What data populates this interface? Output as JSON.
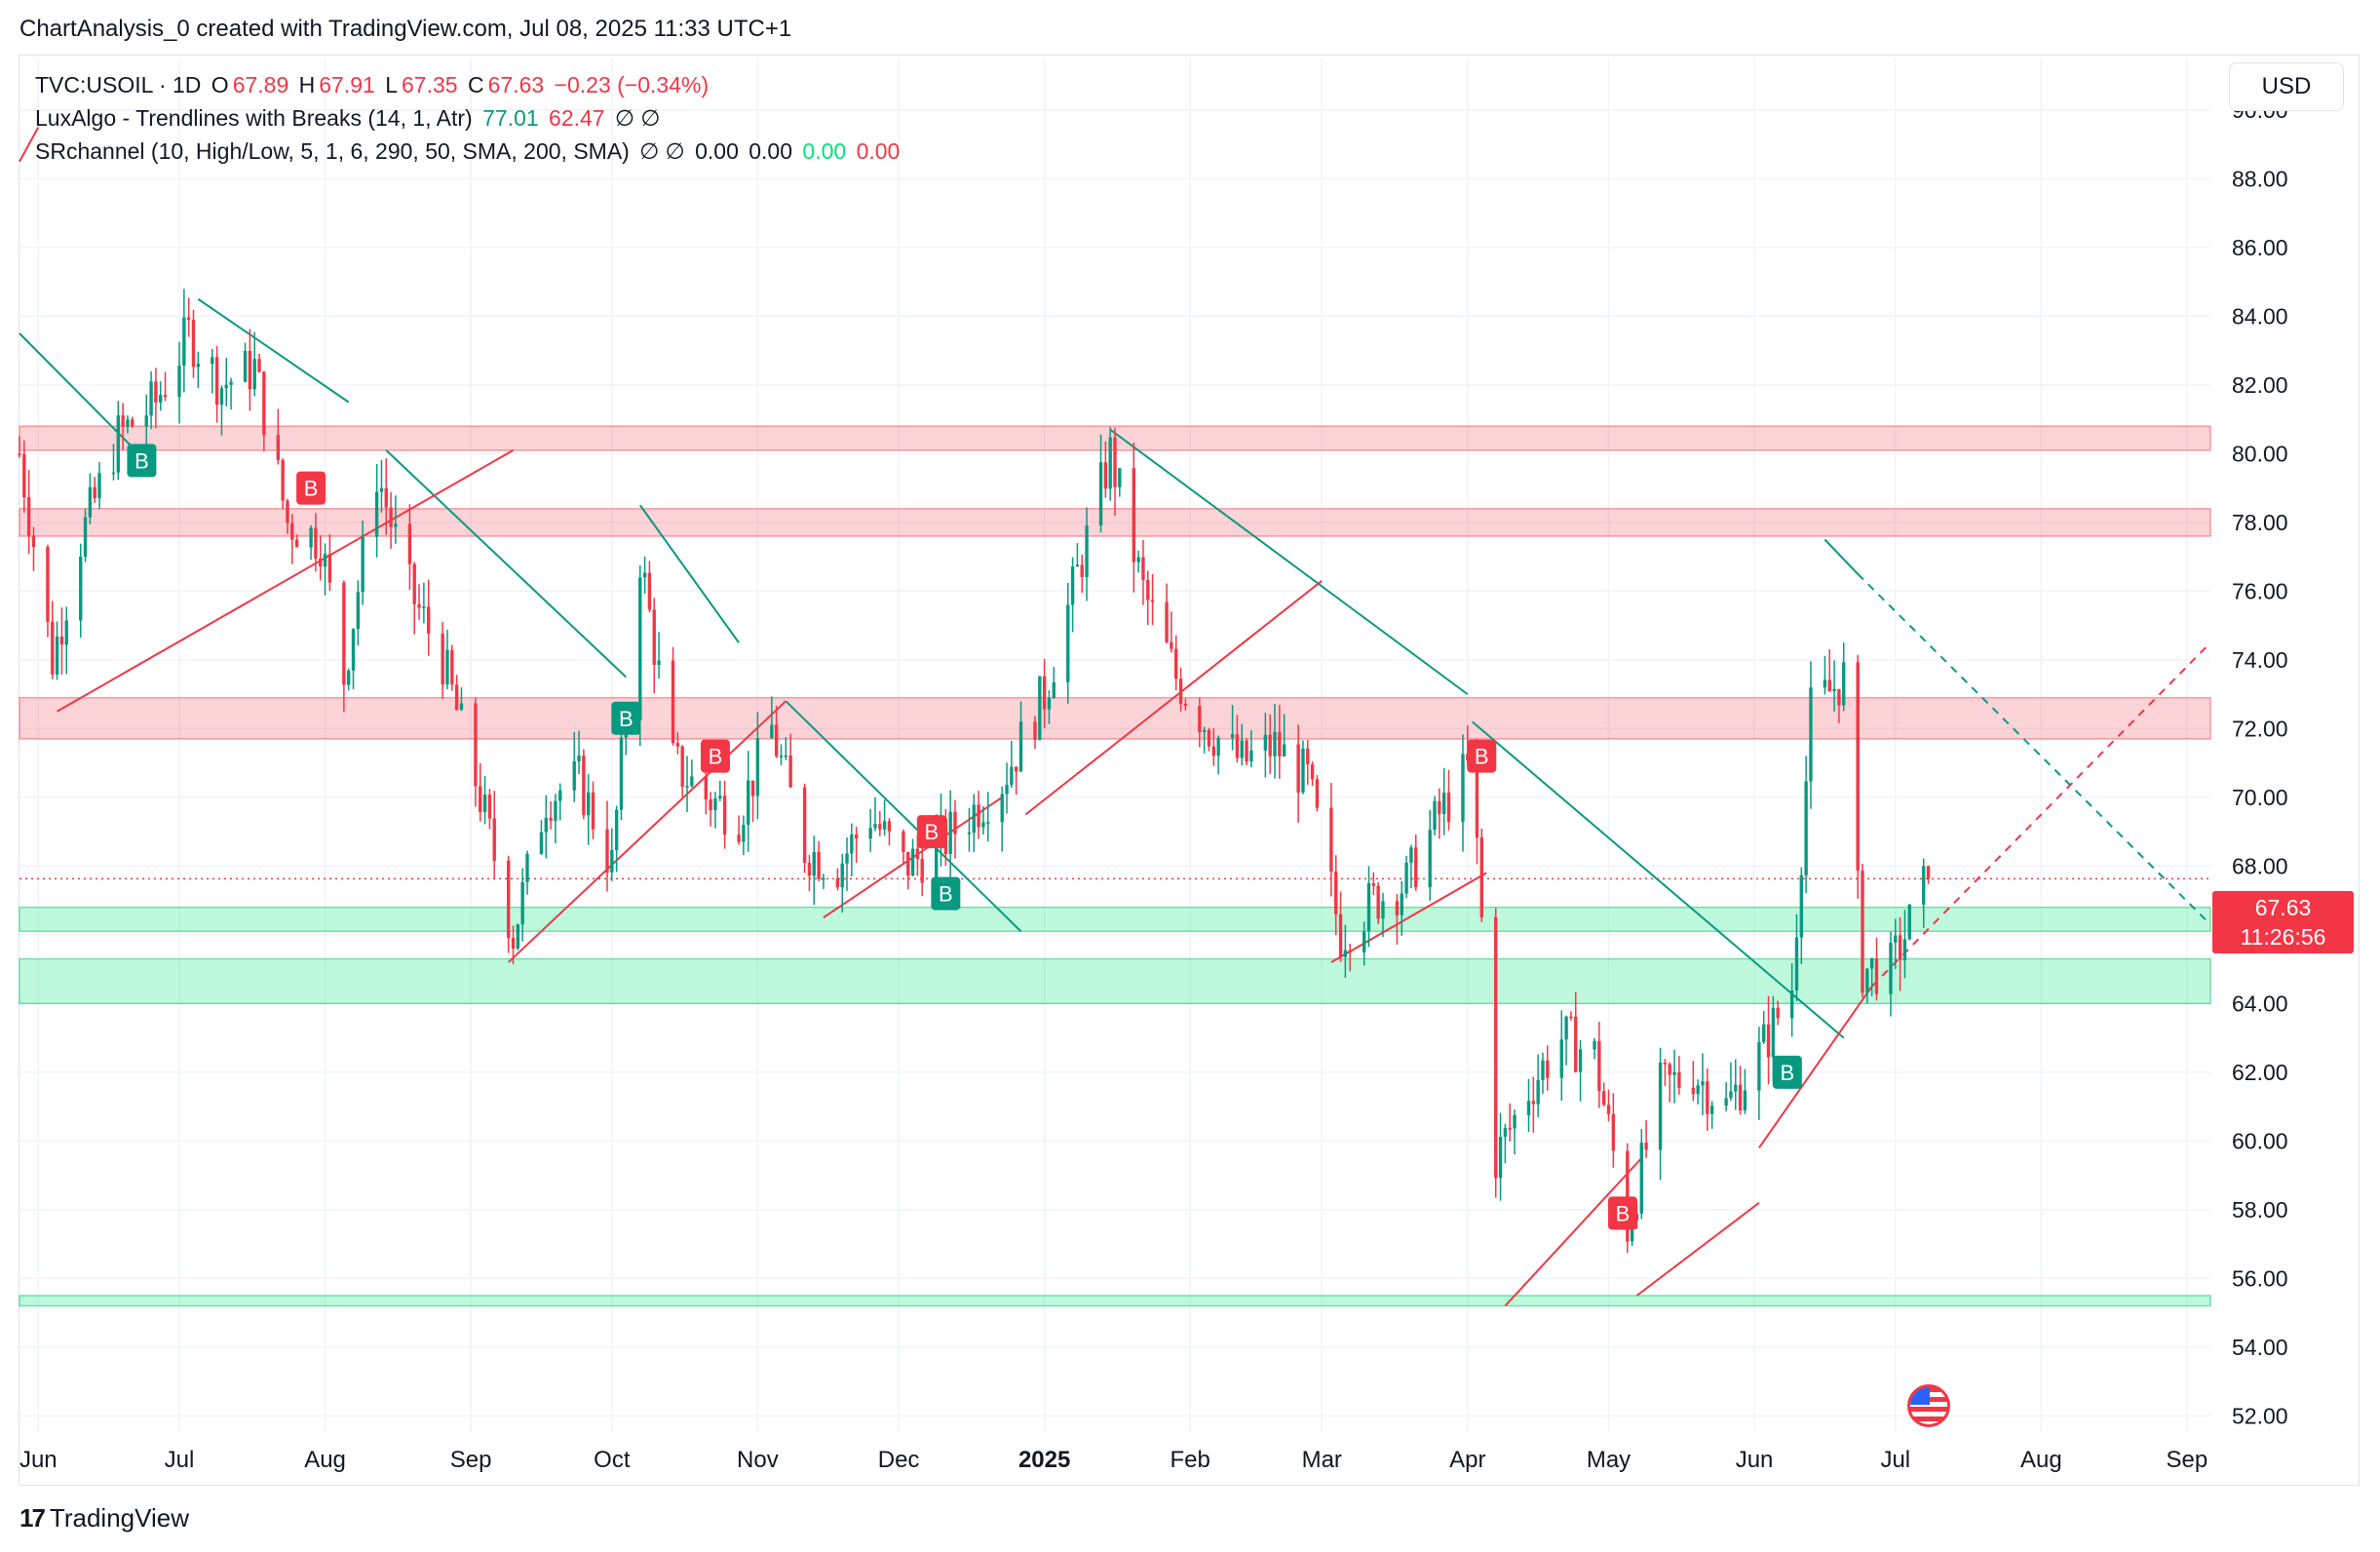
{
  "header": {
    "created_line": "ChartAnalysis_0 created with TradingView.com, Jul 08, 2025 11:33 UTC+1"
  },
  "legend": {
    "symbol": "TVC:USOIL · 1D",
    "open_label": "O",
    "open": "67.89",
    "high_label": "H",
    "high": "67.91",
    "low_label": "L",
    "low": "67.35",
    "close_label": "C",
    "close": "67.63",
    "change": "−0.23 (−0.34%)",
    "indicator1_name": "LuxAlgo - Trendlines with Breaks (14, 1, Atr)",
    "indicator1_v1": "77.01",
    "indicator1_v2": "62.47",
    "indicator1_icons": "∅ ∅",
    "indicator2_name": "SRchannel (10, High/Low, 5, 1, 6, 290, 50, SMA, 200, SMA)",
    "indicator2_icons": "∅ ∅",
    "indicator2_v1": "0.00",
    "indicator2_v2": "0.00",
    "indicator2_v3": "0.00",
    "indicator2_v4": "0.00"
  },
  "currency_button": "USD",
  "price_tag": {
    "price": "67.63",
    "countdown": "11:26:56"
  },
  "footer": {
    "brand": "TradingView",
    "logo_mark": "17"
  },
  "colors": {
    "up": "#089981",
    "down": "#f23645",
    "resistance_zone": "rgba(242,54,69,0.22)",
    "support_zone": "rgba(0,230,118,0.25)"
  },
  "chart_data": {
    "type": "candlestick",
    "y_axis": {
      "min": 51.5,
      "max": 91.5,
      "ticks": [
        52,
        54,
        56,
        58,
        60,
        62,
        64,
        66,
        68,
        70,
        72,
        74,
        76,
        78,
        80,
        82,
        84,
        86,
        88,
        90
      ],
      "tick_labels": [
        "52.00",
        "54.00",
        "56.00",
        "58.00",
        "60.00",
        "62.00",
        "64.00",
        "66.00",
        "68.00",
        "70.00",
        "72.00",
        "74.00",
        "76.00",
        "78.00",
        "80.00",
        "82.00",
        "84.00",
        "86.00",
        "88.00",
        "90.00"
      ]
    },
    "x_axis": {
      "start": "2024-05-28",
      "end": "2025-09-06",
      "ticks": [
        {
          "date": "2024-06-01",
          "label": "Jun"
        },
        {
          "date": "2024-07-01",
          "label": "Jul"
        },
        {
          "date": "2024-08-01",
          "label": "Aug"
        },
        {
          "date": "2024-09-01",
          "label": "Sep"
        },
        {
          "date": "2024-10-01",
          "label": "Oct"
        },
        {
          "date": "2024-11-01",
          "label": "Nov"
        },
        {
          "date": "2024-12-01",
          "label": "Dec"
        },
        {
          "date": "2025-01-01",
          "label": "2025",
          "bold": true
        },
        {
          "date": "2025-02-01",
          "label": "Feb"
        },
        {
          "date": "2025-03-01",
          "label": "Mar"
        },
        {
          "date": "2025-04-01",
          "label": "Apr"
        },
        {
          "date": "2025-05-01",
          "label": "May"
        },
        {
          "date": "2025-06-01",
          "label": "Jun"
        },
        {
          "date": "2025-07-01",
          "label": "Jul"
        },
        {
          "date": "2025-08-01",
          "label": "Aug"
        },
        {
          "date": "2025-09-01",
          "label": "Sep"
        }
      ]
    },
    "close_path": [
      [
        "2024-05-28",
        80.0
      ],
      [
        "2024-06-04",
        74.0
      ],
      [
        "2024-06-10",
        77.5
      ],
      [
        "2024-06-18",
        80.5
      ],
      [
        "2024-06-26",
        81.5
      ],
      [
        "2024-07-03",
        83.5
      ],
      [
        "2024-07-10",
        82.0
      ],
      [
        "2024-07-17",
        82.5
      ],
      [
        "2024-07-24",
        78.0
      ],
      [
        "2024-07-31",
        77.5
      ],
      [
        "2024-08-05",
        73.5
      ],
      [
        "2024-08-12",
        79.5
      ],
      [
        "2024-08-19",
        76.0
      ],
      [
        "2024-08-26",
        74.0
      ],
      [
        "2024-09-03",
        70.0
      ],
      [
        "2024-09-10",
        66.0
      ],
      [
        "2024-09-17",
        70.0
      ],
      [
        "2024-09-24",
        70.5
      ],
      [
        "2024-10-01",
        68.0
      ],
      [
        "2024-10-07",
        77.0
      ],
      [
        "2024-10-14",
        71.0
      ],
      [
        "2024-10-21",
        70.0
      ],
      [
        "2024-10-28",
        69.5
      ],
      [
        "2024-11-04",
        72.0
      ],
      [
        "2024-11-11",
        68.5
      ],
      [
        "2024-11-18",
        68.0
      ],
      [
        "2024-11-25",
        69.5
      ],
      [
        "2024-12-02",
        68.0
      ],
      [
        "2024-12-09",
        68.5
      ],
      [
        "2024-12-16",
        69.5
      ],
      [
        "2024-12-23",
        70.5
      ],
      [
        "2025-01-01",
        73.0
      ],
      [
        "2025-01-08",
        76.5
      ],
      [
        "2025-01-15",
        80.0
      ],
      [
        "2025-01-22",
        76.0
      ],
      [
        "2025-01-29",
        73.5
      ],
      [
        "2025-02-05",
        72.0
      ],
      [
        "2025-02-12",
        71.0
      ],
      [
        "2025-02-19",
        71.5
      ],
      [
        "2025-02-26",
        70.5
      ],
      [
        "2025-03-05",
        66.0
      ],
      [
        "2025-03-12",
        67.0
      ],
      [
        "2025-03-19",
        67.5
      ],
      [
        "2025-03-26",
        69.5
      ],
      [
        "2025-04-02",
        71.0
      ],
      [
        "2025-04-07",
        59.5
      ],
      [
        "2025-04-14",
        61.5
      ],
      [
        "2025-04-21",
        63.0
      ],
      [
        "2025-04-28",
        62.5
      ],
      [
        "2025-05-05",
        57.5
      ],
      [
        "2025-05-12",
        61.5
      ],
      [
        "2025-05-19",
        62.0
      ],
      [
        "2025-05-26",
        61.0
      ],
      [
        "2025-06-02",
        62.5
      ],
      [
        "2025-06-09",
        64.5
      ],
      [
        "2025-06-13",
        72.5
      ],
      [
        "2025-06-20",
        73.5
      ],
      [
        "2025-06-24",
        65.0
      ],
      [
        "2025-06-30",
        65.0
      ],
      [
        "2025-07-08",
        67.63
      ]
    ],
    "resistance_zones": [
      [
        80.1,
        80.8
      ],
      [
        77.6,
        78.4
      ],
      [
        71.7,
        72.9
      ]
    ],
    "support_zones": [
      [
        66.1,
        66.8
      ],
      [
        64.0,
        65.3
      ],
      [
        55.2,
        55.5
      ]
    ],
    "current_price": 67.63,
    "down_trendlines": [
      [
        [
          "2024-05-28",
          83.5
        ],
        [
          "2024-06-26",
          79.5
        ]
      ],
      [
        [
          "2024-07-05",
          84.5
        ],
        [
          "2024-08-06",
          81.5
        ]
      ],
      [
        [
          "2024-08-14",
          80.1
        ],
        [
          "2024-10-04",
          73.5
        ]
      ],
      [
        [
          "2024-10-07",
          78.5
        ],
        [
          "2024-10-28",
          74.5
        ]
      ],
      [
        [
          "2024-11-07",
          72.8
        ],
        [
          "2024-12-27",
          66.1
        ]
      ],
      [
        [
          "2025-01-15",
          80.7
        ],
        [
          "2025-04-01",
          73.0
        ]
      ],
      [
        [
          "2025-04-02",
          72.2
        ],
        [
          "2025-06-20",
          63.0
        ]
      ],
      [
        [
          "2025-06-16",
          77.5
        ],
        [
          "2025-06-23",
          76.5
        ]
      ]
    ],
    "down_trendlines_extended": [
      [
        [
          "2025-06-23",
          76.5
        ],
        [
          "2025-09-06",
          66.3
        ]
      ]
    ],
    "up_trendlines": [
      [
        [
          "2024-05-28",
          88.5
        ],
        [
          "2024-06-01",
          89.5
        ]
      ],
      [
        [
          "2024-06-05",
          72.5
        ],
        [
          "2024-09-10",
          80.1
        ]
      ],
      [
        [
          "2024-09-09",
          65.2
        ],
        [
          "2024-11-07",
          72.8
        ]
      ],
      [
        [
          "2024-11-15",
          66.5
        ],
        [
          "2024-12-23",
          70.0
        ]
      ],
      [
        [
          "2024-12-28",
          69.5
        ],
        [
          "2025-03-01",
          76.3
        ]
      ],
      [
        [
          "2025-03-03",
          65.2
        ],
        [
          "2025-04-05",
          67.8
        ]
      ],
      [
        [
          "2025-04-09",
          55.2
        ],
        [
          "2025-05-08",
          59.5
        ]
      ],
      [
        [
          "2025-05-07",
          55.5
        ],
        [
          "2025-06-02",
          58.2
        ]
      ],
      [
        [
          "2025-06-02",
          59.8
        ],
        [
          "2025-06-26",
          64.5
        ]
      ]
    ],
    "up_trendlines_extended": [
      [
        [
          "2025-06-26",
          64.5
        ],
        [
          "2025-09-06",
          74.5
        ]
      ]
    ],
    "break_labels": [
      {
        "date": "2024-06-23",
        "price": 79.8,
        "label": "B",
        "kind": "bull"
      },
      {
        "date": "2024-07-29",
        "price": 79.0,
        "label": "B",
        "kind": "bear"
      },
      {
        "date": "2024-10-04",
        "price": 72.3,
        "label": "B",
        "kind": "bull"
      },
      {
        "date": "2024-10-23",
        "price": 71.2,
        "label": "B",
        "kind": "bear"
      },
      {
        "date": "2024-12-08",
        "price": 69.0,
        "label": "B",
        "kind": "bear"
      },
      {
        "date": "2024-12-11",
        "price": 67.2,
        "label": "B",
        "kind": "bull"
      },
      {
        "date": "2025-04-04",
        "price": 71.2,
        "label": "B",
        "kind": "bear"
      },
      {
        "date": "2025-05-04",
        "price": 57.9,
        "label": "B",
        "kind": "bear"
      },
      {
        "date": "2025-06-08",
        "price": 62.0,
        "label": "B",
        "kind": "bull"
      }
    ]
  }
}
